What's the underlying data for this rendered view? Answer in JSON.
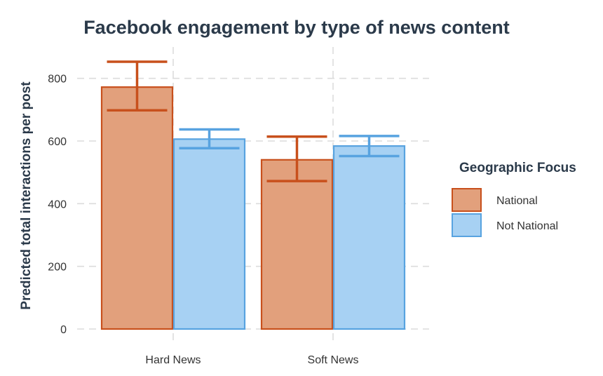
{
  "chart_data": {
    "type": "bar",
    "title": "Facebook engagement by type of news content",
    "xlabel": "",
    "ylabel": "Predicted total interactions per post",
    "categories": [
      "Hard News",
      "Soft News"
    ],
    "series": [
      {
        "name": "National",
        "values": [
          772,
          540
        ],
        "error_low": [
          698,
          472
        ],
        "error_high": [
          853,
          614
        ],
        "fill": "#e2a07c",
        "stroke": "#c8501c"
      },
      {
        "name": "Not National",
        "values": [
          606,
          584
        ],
        "error_low": [
          577,
          552
        ],
        "error_high": [
          637,
          616
        ],
        "fill": "#a7d1f3",
        "stroke": "#58a3e0"
      }
    ],
    "ylim": [
      0,
      900
    ],
    "yticks": [
      0,
      200,
      400,
      600,
      800
    ],
    "ytick_labels": [
      "0",
      "200",
      "400",
      "600",
      "800"
    ],
    "grid": true,
    "legend": {
      "title": "Geographic Focus",
      "placement": "right"
    }
  }
}
